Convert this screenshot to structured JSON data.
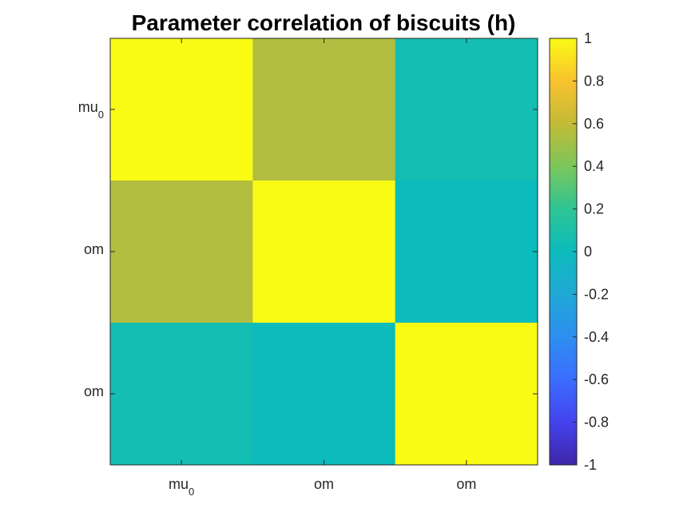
{
  "chart_data": {
    "type": "heatmap",
    "title": "Parameter correlation of biscuits (h)",
    "row_labels": [
      {
        "base": "mu",
        "sub": "0"
      },
      {
        "base": "om",
        "sub": ""
      },
      {
        "base": "om",
        "sub": ""
      }
    ],
    "col_labels": [
      {
        "base": "mu",
        "sub": "0"
      },
      {
        "base": "om",
        "sub": ""
      },
      {
        "base": "om",
        "sub": ""
      }
    ],
    "values": [
      [
        1.0,
        0.55,
        0.05
      ],
      [
        0.55,
        1.0,
        0.0
      ],
      [
        0.05,
        0.0,
        1.0
      ]
    ],
    "colorbar": {
      "range": [
        -1,
        1
      ],
      "ticks": [
        1,
        0.8,
        0.6,
        0.4,
        0.2,
        0,
        -0.2,
        -0.4,
        -0.6,
        -0.8,
        -1
      ],
      "colormap": "parula",
      "colormap_stops": [
        "#3e26a8",
        "#4443ed",
        "#3b6dff",
        "#2d8ff0",
        "#21a8d6",
        "#0cbbbc",
        "#2ec594",
        "#7cc65b",
        "#c2bb35",
        "#f9c22e",
        "#f9fb15"
      ]
    }
  }
}
